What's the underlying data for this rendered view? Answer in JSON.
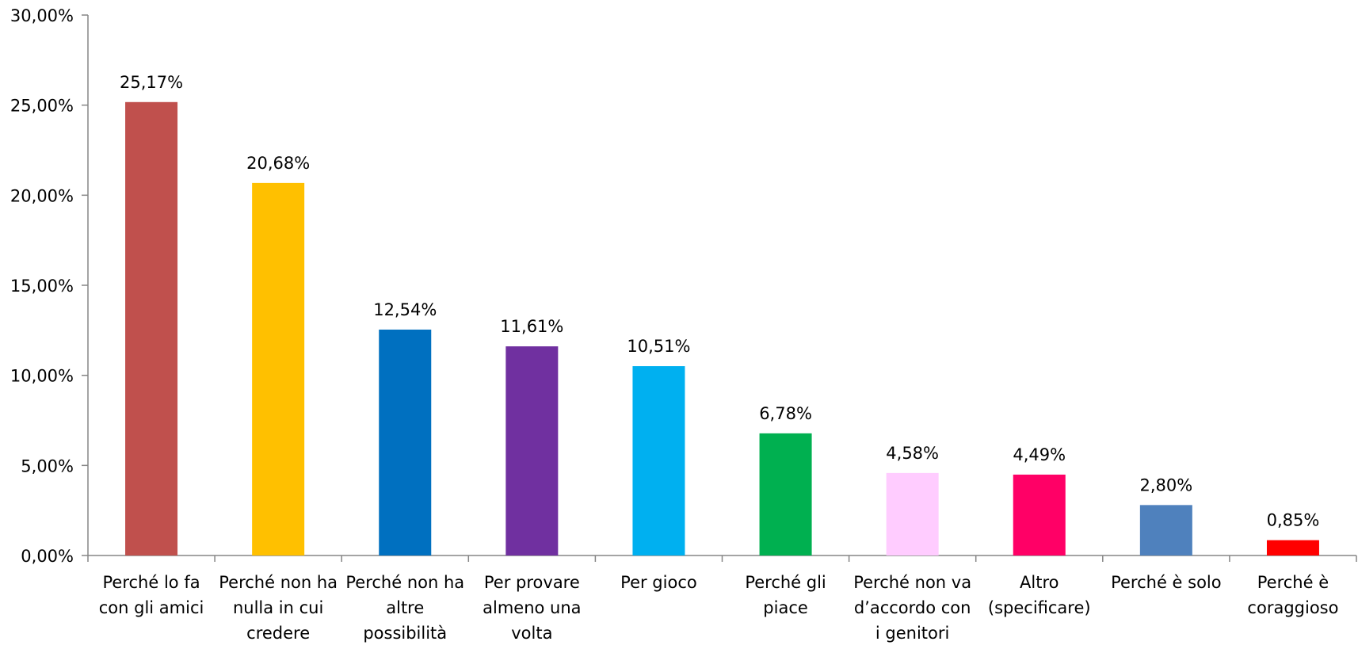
{
  "chart_data": {
    "type": "bar",
    "title": "",
    "xlabel": "",
    "ylabel": "",
    "ylim": [
      0,
      30
    ],
    "yticks": [
      "0,00%",
      "5,00%",
      "10,00%",
      "15,00%",
      "20,00%",
      "25,00%",
      "30,00%"
    ],
    "grid": false,
    "legend": "none",
    "categories": [
      [
        "Perché lo fa",
        "con gli amici"
      ],
      [
        "Perché non ha",
        "nulla in cui",
        "credere"
      ],
      [
        "Perché non ha",
        "altre",
        "possibilità"
      ],
      [
        "Per provare",
        "almeno una",
        "volta"
      ],
      [
        "Per gioco"
      ],
      [
        "Perché gli",
        "piace"
      ],
      [
        "Perché non va",
        "d’accordo con",
        "i genitori"
      ],
      [
        "Altro",
        "(specificare)"
      ],
      [
        "Perché è solo"
      ],
      [
        "Perché è",
        "coraggioso"
      ]
    ],
    "values": [
      25.17,
      20.68,
      12.54,
      11.61,
      10.51,
      6.78,
      4.58,
      4.49,
      2.8,
      0.85
    ],
    "data_labels": [
      "25,17%",
      "20,68%",
      "12,54%",
      "11,61%",
      "10,51%",
      "6,78%",
      "4,58%",
      "4,49%",
      "2,80%",
      "0,85%"
    ],
    "colors": [
      "#C0504D",
      "#FFC000",
      "#0070C0",
      "#7030A0",
      "#00B0F0",
      "#00B050",
      "#FFCCFF",
      "#FF0066",
      "#4F81BD",
      "#FF0000"
    ],
    "axis_color": "#868686"
  }
}
